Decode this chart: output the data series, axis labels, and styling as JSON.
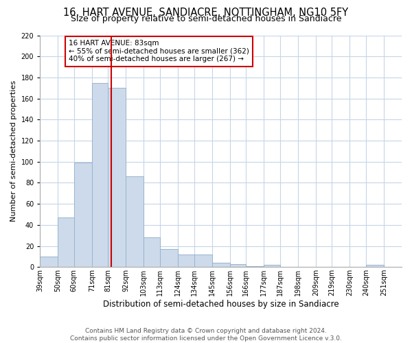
{
  "title": "16, HART AVENUE, SANDIACRE, NOTTINGHAM, NG10 5FY",
  "subtitle": "Size of property relative to semi-detached houses in Sandiacre",
  "xlabel": "Distribution of semi-detached houses by size in Sandiacre",
  "ylabel": "Number of semi-detached properties",
  "bar_color": "#ccdaeb",
  "bar_edge_color": "#9ab4cd",
  "bin_edges": [
    39,
    50,
    60,
    71,
    81,
    92,
    103,
    113,
    124,
    134,
    145,
    156,
    166,
    177,
    187,
    198,
    209,
    219,
    230,
    240,
    251,
    262
  ],
  "bin_labels": [
    "39sqm",
    "50sqm",
    "60sqm",
    "71sqm",
    "81sqm",
    "92sqm",
    "103sqm",
    "113sqm",
    "124sqm",
    "134sqm",
    "145sqm",
    "156sqm",
    "166sqm",
    "177sqm",
    "187sqm",
    "198sqm",
    "209sqm",
    "219sqm",
    "230sqm",
    "240sqm",
    "251sqm"
  ],
  "values": [
    10,
    47,
    99,
    175,
    170,
    86,
    28,
    17,
    12,
    12,
    4,
    3,
    1,
    2,
    0,
    0,
    0,
    0,
    0,
    2,
    0
  ],
  "vline_value": 83,
  "vline_color": "#cc0000",
  "annotation_title": "16 HART AVENUE: 83sqm",
  "annotation_line1": "← 55% of semi-detached houses are smaller (362)",
  "annotation_line2": "40% of semi-detached houses are larger (267) →",
  "annotation_box_color": "#ffffff",
  "annotation_box_edge": "#cc0000",
  "ylim": [
    0,
    220
  ],
  "yticks": [
    0,
    20,
    40,
    60,
    80,
    100,
    120,
    140,
    160,
    180,
    200,
    220
  ],
  "background_color": "#ffffff",
  "grid_color": "#c5d5e8",
  "footer": "Contains HM Land Registry data © Crown copyright and database right 2024.\nContains public sector information licensed under the Open Government Licence v.3.0.",
  "title_fontsize": 10.5,
  "subtitle_fontsize": 9,
  "xlabel_fontsize": 8.5,
  "ylabel_fontsize": 8,
  "tick_fontsize": 7,
  "footer_fontsize": 6.5
}
